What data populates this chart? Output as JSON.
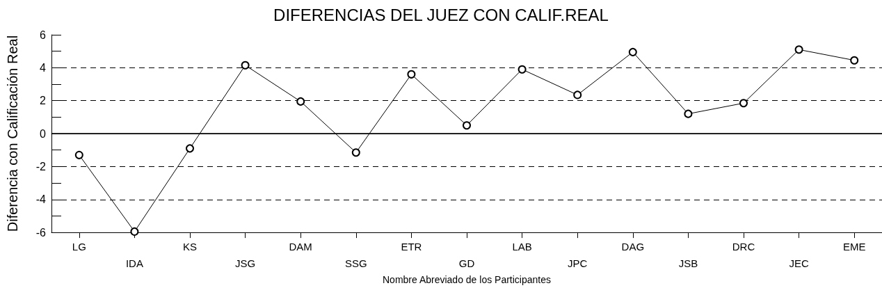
{
  "chart_data": {
    "type": "line",
    "title": "DIFERENCIAS DEL JUEZ CON CALIF.REAL",
    "xlabel": "Nombre Abreviado de los Participantes",
    "ylabel": "Diferencia con Calificación Real",
    "categories": [
      "LG",
      "IDA",
      "KS",
      "JSG",
      "DAM",
      "SSG",
      "ETR",
      "GD",
      "LAB",
      "JPC",
      "DAG",
      "JSB",
      "DRC",
      "JEC",
      "EME"
    ],
    "series": [
      {
        "color": "#000000",
        "values": [
          -1.3,
          -5.95,
          -0.9,
          4.15,
          1.95,
          -1.15,
          3.6,
          0.5,
          3.9,
          2.35,
          4.95,
          1.2,
          1.85,
          5.1,
          4.45
        ]
      }
    ],
    "ylim": [
      -6,
      6
    ],
    "yticks": [
      -6,
      {
        "value": -5,
        "label": null
      },
      -4,
      {
        "value": -3,
        "label": null
      },
      -2,
      {
        "value": -1,
        "label": null
      },
      0,
      {
        "value": 1,
        "label": null
      },
      2,
      {
        "value": 3,
        "label": null
      },
      4,
      {
        "value": 5,
        "label": null
      },
      6
    ],
    "grid": "y",
    "marker": "circle",
    "line_style": "solid",
    "ref_lines": [
      {
        "axis": "y",
        "value": 0,
        "color": "#000000",
        "line_style": "solid"
      }
    ]
  }
}
